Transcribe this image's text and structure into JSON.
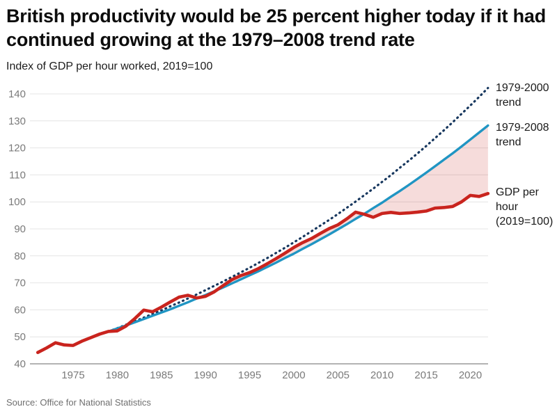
{
  "header": {
    "title": "British productivity would be 25 percent higher today if it had continued growing at the 1979–2008 trend rate",
    "subtitle": "Index of GDP per hour worked, 2019=100"
  },
  "source": {
    "text": "Source: Office for National Statistics"
  },
  "colors": {
    "trend_2000": "#17375e",
    "trend_2008": "#2095c3",
    "gdp": "#c9241e",
    "gap_fill": "rgba(201,36,30,0.16)",
    "gridline": "#e4e4e4",
    "axis_line": "#9a9a9a",
    "tick_label": "#7a7a7a"
  },
  "chart_data": {
    "type": "line",
    "title": "British productivity would be 25 percent higher today if it had continued growing at the 1979–2008 trend rate",
    "subtitle": "Index of GDP per hour worked, 2019=100",
    "xlabel": "",
    "ylabel": "Index of GDP per hour worked, 2019=100",
    "xlim": [
      1971,
      2022
    ],
    "ylim": [
      40,
      145
    ],
    "x_ticks": [
      1975,
      1980,
      1985,
      1990,
      1995,
      2000,
      2005,
      2010,
      2015,
      2020
    ],
    "y_ticks": [
      40,
      50,
      60,
      70,
      80,
      90,
      100,
      110,
      120,
      130,
      140
    ],
    "grid": "horizontal",
    "legend_position": "right-annotations",
    "series": [
      {
        "name": "trend_2000",
        "label": "1979-2000 trend",
        "style": "dotted",
        "color": "#17375e",
        "start_year": 1979,
        "values": [
          52.0,
          53.2,
          54.5,
          55.8,
          57.1,
          58.5,
          59.8,
          61.3,
          62.7,
          64.2,
          65.7,
          67.3,
          68.9,
          70.5,
          72.2,
          73.9,
          75.6,
          77.4,
          79.2,
          81.1,
          83.0,
          85.0,
          87.0,
          89.1,
          91.2,
          93.3,
          95.5,
          97.8,
          100.1,
          102.5,
          104.9,
          107.4,
          109.9,
          112.6,
          115.2,
          117.9,
          120.7,
          123.6,
          126.5,
          129.5,
          132.6,
          135.7,
          138.9,
          142.2
        ]
      },
      {
        "name": "trend_2008",
        "label": "1979-2008 trend",
        "style": "solid",
        "color": "#2095c3",
        "start_year": 1979,
        "values": [
          52.0,
          53.1,
          54.2,
          55.4,
          56.6,
          57.8,
          59.0,
          60.2,
          61.5,
          62.8,
          64.2,
          65.5,
          66.9,
          68.3,
          69.8,
          71.3,
          72.8,
          74.3,
          75.9,
          77.5,
          79.2,
          80.8,
          82.6,
          84.3,
          86.1,
          87.9,
          89.8,
          91.7,
          93.7,
          95.6,
          97.7,
          99.7,
          101.9,
          104.0,
          106.2,
          108.5,
          110.8,
          113.2,
          115.6,
          118.0,
          120.5,
          123.1,
          125.7,
          128.3
        ]
      },
      {
        "name": "gdp",
        "label": "GDP per hour (2019=100)",
        "style": "solid",
        "color": "#c9241e",
        "start_year": 1971,
        "values": [
          44.2,
          45.9,
          47.8,
          47.0,
          46.8,
          48.4,
          49.7,
          51.0,
          52.0,
          52.2,
          54.0,
          56.8,
          59.9,
          59.3,
          61.0,
          62.9,
          64.7,
          65.4,
          64.4,
          65.0,
          66.7,
          69.0,
          71.2,
          72.7,
          73.8,
          75.3,
          77.1,
          79.0,
          81.0,
          83.1,
          84.9,
          86.4,
          88.3,
          90.1,
          91.5,
          93.7,
          96.2,
          95.4,
          94.3,
          95.7,
          96.1,
          95.7,
          95.9,
          96.2,
          96.6,
          97.7,
          97.9,
          98.3,
          100.0,
          102.4,
          102.0,
          103.1
        ]
      }
    ],
    "fill_between": {
      "upper": "trend_2008",
      "lower": "gdp",
      "color": "rgba(201,36,30,0.16)",
      "note": "gap between 1979-2008 trend and actual GDP per hour, from ~2008 to 2022"
    }
  }
}
